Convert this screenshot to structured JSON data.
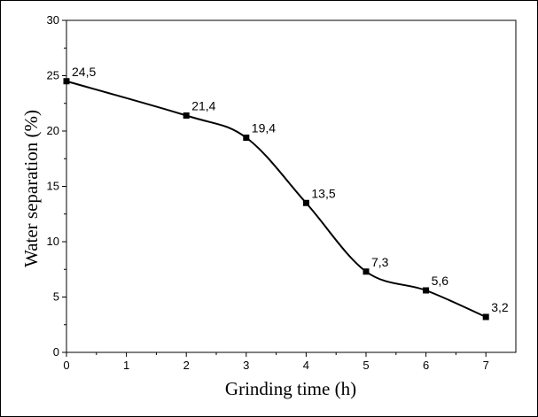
{
  "chart_data": {
    "type": "line",
    "title": "",
    "xlabel": "Grinding time (h)",
    "ylabel": "Water separation (%)",
    "xlim": [
      0,
      7.5
    ],
    "ylim": [
      0,
      30
    ],
    "x_ticks": [
      0,
      1,
      2,
      3,
      4,
      5,
      6,
      7
    ],
    "y_ticks": [
      0,
      5,
      10,
      15,
      20,
      25,
      30
    ],
    "x_tick_labels": [
      "0",
      "1",
      "2",
      "3",
      "4",
      "5",
      "6",
      "7"
    ],
    "y_tick_labels": [
      "0",
      "5",
      "10",
      "15",
      "20",
      "25",
      "30"
    ],
    "grid": false,
    "legend": "none",
    "series": [
      {
        "name": "Water separation",
        "marker": "square",
        "color": "#000000",
        "x": [
          0,
          2,
          3,
          4,
          5,
          6,
          7
        ],
        "values": [
          24.5,
          21.4,
          19.4,
          13.5,
          7.3,
          5.6,
          3.2
        ],
        "data_labels": [
          "24,5",
          "21,4",
          "19,4",
          "13,5",
          "7,3",
          "5,6",
          "3,2"
        ]
      }
    ]
  }
}
